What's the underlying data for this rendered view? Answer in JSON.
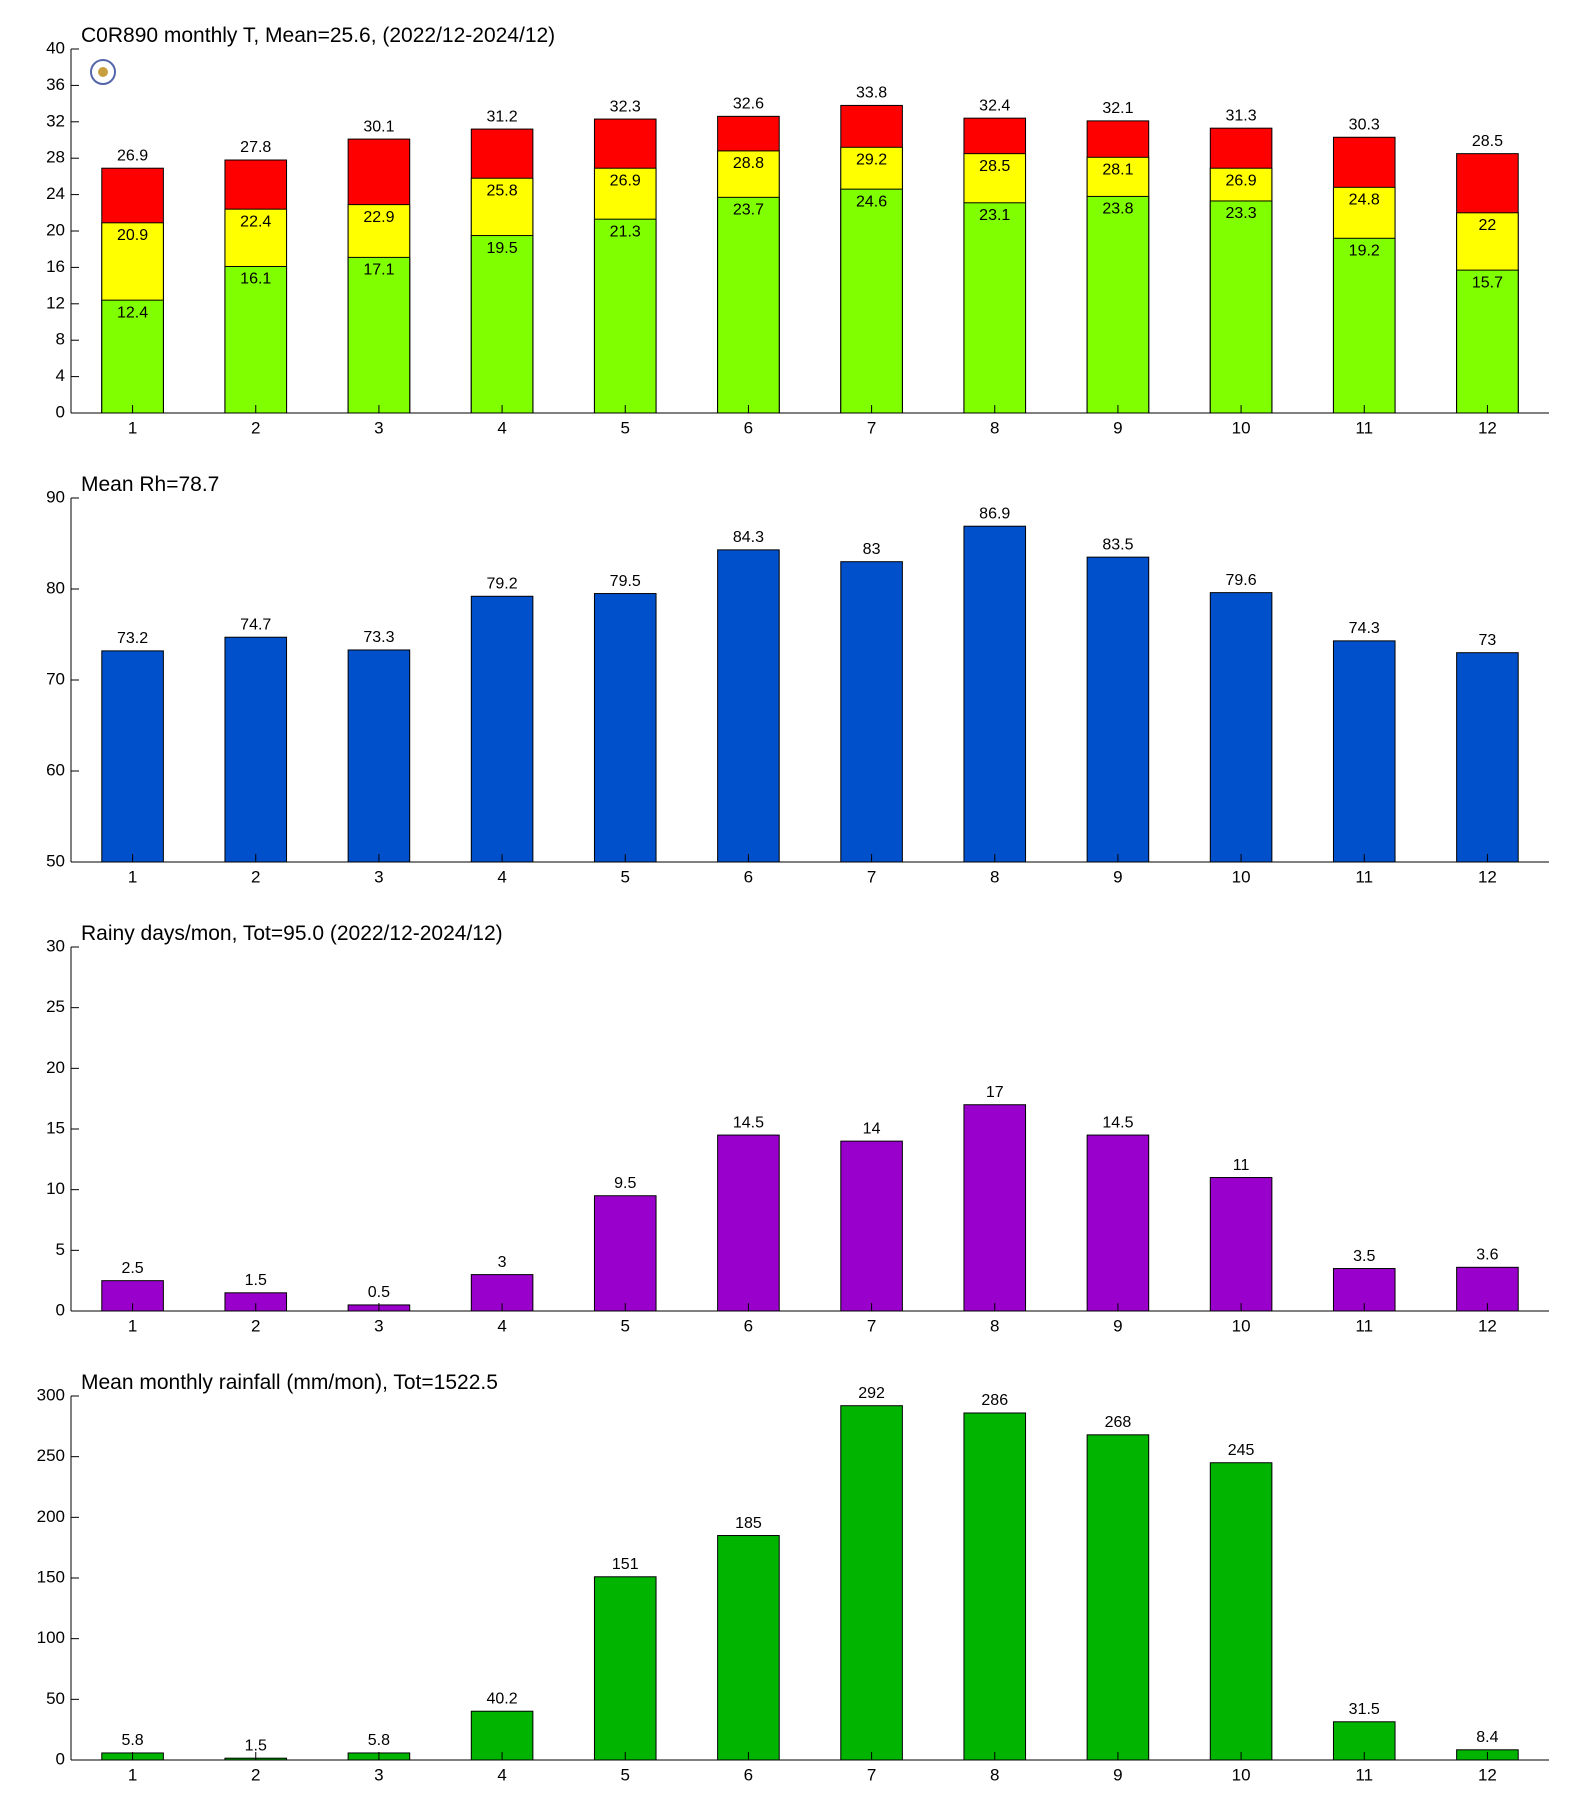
{
  "chart_data": [
    {
      "type": "bar",
      "title": "C0R890 monthly T, Mean=25.6, (2022/12-2024/12)",
      "categories": [
        "1",
        "2",
        "3",
        "4",
        "5",
        "6",
        "7",
        "8",
        "9",
        "10",
        "11",
        "12"
      ],
      "series": [
        {
          "color": "#ff0000",
          "values": [
            26.9,
            27.8,
            30.1,
            31.2,
            32.3,
            32.6,
            33.8,
            32.4,
            32.1,
            31.3,
            30.3,
            28.5
          ]
        },
        {
          "color": "#ffff00",
          "values": [
            20.9,
            22.4,
            22.9,
            25.8,
            26.9,
            28.8,
            29.2,
            28.5,
            28.1,
            26.9,
            24.8,
            22
          ]
        },
        {
          "color": "#80ff00",
          "values": [
            12.4,
            16.1,
            17.1,
            19.5,
            21.3,
            23.7,
            24.6,
            23.1,
            23.8,
            23.3,
            19.2,
            15.7
          ]
        }
      ],
      "ylim": [
        0,
        40
      ],
      "yticks": [
        0,
        4,
        8,
        12,
        16,
        20,
        24,
        28,
        32,
        36,
        40
      ]
    },
    {
      "type": "bar",
      "title": "Mean Rh=78.7",
      "categories": [
        "1",
        "2",
        "3",
        "4",
        "5",
        "6",
        "7",
        "8",
        "9",
        "10",
        "11",
        "12"
      ],
      "series": [
        {
          "color": "#0050cc",
          "values": [
            73.2,
            74.7,
            73.3,
            79.2,
            79.5,
            84.3,
            83,
            86.9,
            83.5,
            79.6,
            74.3,
            73
          ]
        }
      ],
      "ylim": [
        50,
        90
      ],
      "yticks": [
        50,
        60,
        70,
        80,
        90
      ]
    },
    {
      "type": "bar",
      "title": "Rainy days/mon, Tot=95.0 (2022/12-2024/12)",
      "categories": [
        "1",
        "2",
        "3",
        "4",
        "5",
        "6",
        "7",
        "8",
        "9",
        "10",
        "11",
        "12"
      ],
      "series": [
        {
          "color": "#9900cc",
          "values": [
            2.5,
            1.5,
            0.5,
            3,
            9.5,
            14.5,
            14,
            17,
            14.5,
            11,
            3.5,
            3.6
          ]
        }
      ],
      "ylim": [
        0,
        30
      ],
      "yticks": [
        0,
        5,
        10,
        15,
        20,
        25,
        30
      ]
    },
    {
      "type": "bar",
      "title": "Mean monthly rainfall (mm/mon), Tot=1522.5",
      "categories": [
        "1",
        "2",
        "3",
        "4",
        "5",
        "6",
        "7",
        "8",
        "9",
        "10",
        "11",
        "12"
      ],
      "series": [
        {
          "color": "#00b400",
          "values": [
            5.8,
            1.5,
            5.8,
            40.2,
            151,
            185,
            292,
            286,
            268,
            245,
            31.5,
            8.4
          ]
        }
      ],
      "ylim": [
        0,
        300
      ],
      "yticks": [
        0,
        50,
        100,
        150,
        200,
        250,
        300
      ]
    }
  ]
}
